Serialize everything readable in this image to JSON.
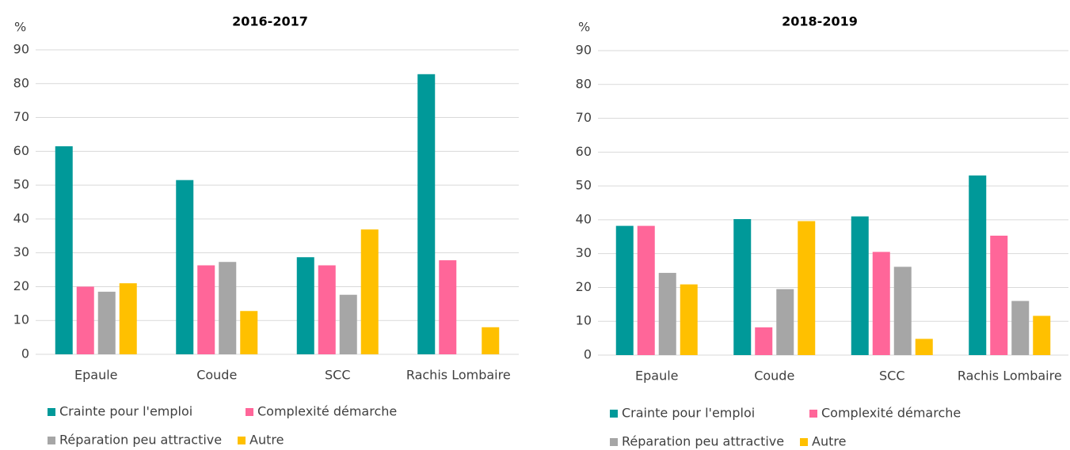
{
  "chart_data": [
    {
      "type": "bar",
      "title": "2016-2017",
      "ylabel": "%",
      "categories": [
        "Epaule",
        "Coude",
        "SCC",
        "Rachis Lombaire"
      ],
      "series": [
        {
          "name": "Crainte pour l'emploi",
          "color": "#009999",
          "values": [
            61.5,
            51.5,
            28.7,
            82.8
          ]
        },
        {
          "name": "Complexité démarche",
          "color": "#ff6699",
          "values": [
            20,
            26.3,
            26.3,
            27.8
          ]
        },
        {
          "name": "Réparation peu attractive",
          "color": "#a6a6a6",
          "values": [
            18.5,
            27.3,
            17.6,
            0
          ]
        },
        {
          "name": "Autre",
          "color": "#ffc000",
          "values": [
            21,
            12.8,
            36.9,
            8
          ]
        }
      ],
      "ylim": [
        0,
        90
      ],
      "yticks": [
        0,
        10,
        20,
        30,
        40,
        50,
        60,
        70,
        80,
        90
      ],
      "grid": true
    },
    {
      "type": "bar",
      "title": "2018-2019",
      "ylabel": "%",
      "categories": [
        "Epaule",
        "Coude",
        "SCC",
        "Rachis Lombaire"
      ],
      "series": [
        {
          "name": "Crainte pour l'emploi",
          "color": "#009999",
          "values": [
            38.2,
            40.2,
            41,
            53.1
          ]
        },
        {
          "name": "Complexité démarche",
          "color": "#ff6699",
          "values": [
            38.2,
            8.2,
            30.5,
            35.3
          ]
        },
        {
          "name": "Réparation peu attractive",
          "color": "#a6a6a6",
          "values": [
            24.3,
            19.5,
            26.1,
            16
          ]
        },
        {
          "name": "Autre",
          "color": "#ffc000",
          "values": [
            20.9,
            39.6,
            4.8,
            11.6
          ]
        }
      ],
      "ylim": [
        0,
        90
      ],
      "yticks": [
        0,
        10,
        20,
        30,
        40,
        50,
        60,
        70,
        80,
        90
      ],
      "grid": true
    }
  ]
}
